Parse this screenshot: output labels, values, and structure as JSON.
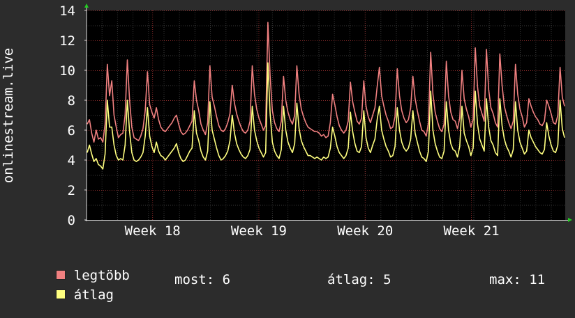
{
  "chart_data": {
    "type": "line",
    "title": "",
    "xlabel": "",
    "ylabel": "onlinestream.live",
    "ylim": [
      0,
      14
    ],
    "yticks": [
      0,
      2,
      4,
      6,
      8,
      10,
      12,
      14
    ],
    "x_tick_labels": [
      "Week 18",
      "Week 19",
      "Week 20",
      "Week 21"
    ],
    "x_tick_fractions": [
      0.138,
      0.36,
      0.582,
      0.804
    ],
    "grid": true,
    "legend": "bottom-left",
    "series": [
      {
        "name": "legtöbb",
        "color": "#f08080",
        "values": [
          6.4,
          6.7,
          5.8,
          5.2,
          6.0,
          5.4,
          5.5,
          5.2,
          6.4,
          10.4,
          8.3,
          9.3,
          7.0,
          6.2,
          5.5,
          5.7,
          5.8,
          7.0,
          10.7,
          8.0,
          6.2,
          5.5,
          5.4,
          5.3,
          5.6,
          6.1,
          7.3,
          9.9,
          7.7,
          7.2,
          6.8,
          7.5,
          6.7,
          6.2,
          6.0,
          5.9,
          6.1,
          6.3,
          6.5,
          6.8,
          7.0,
          6.4,
          5.9,
          5.7,
          5.8,
          6.0,
          6.3,
          6.6,
          9.3,
          8.0,
          7.3,
          6.4,
          6.0,
          5.7,
          6.5,
          10.3,
          8.2,
          7.6,
          6.9,
          6.3,
          6.0,
          5.9,
          6.1,
          6.5,
          7.1,
          9.0,
          7.8,
          7.1,
          6.6,
          6.2,
          5.9,
          5.8,
          6.0,
          6.6,
          10.3,
          8.4,
          7.4,
          6.8,
          6.4,
          6.0,
          6.3,
          13.2,
          9.6,
          7.3,
          6.5,
          6.1,
          5.9,
          6.6,
          9.6,
          8.0,
          7.2,
          6.7,
          6.4,
          7.0,
          10.3,
          8.4,
          7.4,
          6.9,
          6.5,
          6.2,
          6.1,
          6.0,
          5.9,
          5.9,
          5.8,
          5.6,
          5.7,
          5.5,
          5.6,
          6.5,
          8.4,
          7.7,
          6.9,
          6.3,
          6.0,
          5.8,
          6.0,
          6.6,
          9.2,
          7.9,
          7.2,
          6.6,
          6.4,
          6.8,
          9.3,
          7.6,
          6.9,
          6.5,
          7.0,
          7.5,
          8.9,
          10.2,
          8.3,
          7.6,
          7.0,
          6.6,
          6.1,
          6.2,
          6.9,
          10.1,
          8.3,
          7.3,
          6.8,
          6.5,
          6.7,
          7.5,
          9.6,
          8.1,
          7.3,
          6.6,
          6.0,
          5.9,
          5.6,
          6.5,
          11.2,
          8.4,
          7.2,
          6.6,
          6.1,
          5.9,
          6.4,
          10.6,
          8.3,
          7.2,
          6.7,
          6.6,
          6.1,
          6.8,
          10.0,
          8.1,
          7.4,
          6.9,
          6.2,
          6.7,
          11.5,
          8.9,
          7.6,
          7.1,
          6.6,
          11.4,
          8.7,
          7.5,
          7.1,
          6.5,
          6.2,
          11.1,
          9.0,
          7.6,
          7.0,
          6.5,
          6.1,
          6.6,
          10.4,
          8.4,
          7.4,
          6.9,
          6.2,
          6.5,
          8.1,
          7.6,
          7.2,
          6.9,
          6.7,
          6.4,
          6.3,
          6.6,
          8.0,
          7.6,
          7.1,
          6.5,
          6.4,
          7.0,
          10.2,
          8.2,
          7.6
        ]
      },
      {
        "name": "átlag",
        "color": "#ffff80",
        "values": [
          4.5,
          5.0,
          4.4,
          3.9,
          4.1,
          3.7,
          3.6,
          3.4,
          4.4,
          8.0,
          6.2,
          6.2,
          5.0,
          4.3,
          4.0,
          4.1,
          4.0,
          5.0,
          8.0,
          5.9,
          4.5,
          4.0,
          3.9,
          4.0,
          4.2,
          4.5,
          5.6,
          7.5,
          5.6,
          4.9,
          4.5,
          5.2,
          4.6,
          4.3,
          4.2,
          4.0,
          4.2,
          4.4,
          4.6,
          4.8,
          5.1,
          4.5,
          4.1,
          3.9,
          4.0,
          4.3,
          4.6,
          4.8,
          7.3,
          5.8,
          5.3,
          4.6,
          4.2,
          4.0,
          4.6,
          7.9,
          6.0,
          5.4,
          4.8,
          4.3,
          4.0,
          4.1,
          4.3,
          4.6,
          5.3,
          7.0,
          5.8,
          5.1,
          4.7,
          4.4,
          4.2,
          4.1,
          4.3,
          4.7,
          7.6,
          6.0,
          5.3,
          4.8,
          4.5,
          4.2,
          4.5,
          10.5,
          7.1,
          5.2,
          4.6,
          4.3,
          4.1,
          4.7,
          7.6,
          6.0,
          5.2,
          4.8,
          4.5,
          5.1,
          7.8,
          6.1,
          5.3,
          4.9,
          4.6,
          4.3,
          4.3,
          4.2,
          4.1,
          4.2,
          4.1,
          4.0,
          4.2,
          4.1,
          4.2,
          4.8,
          6.2,
          5.6,
          4.9,
          4.5,
          4.3,
          4.1,
          4.3,
          4.8,
          7.2,
          5.9,
          5.1,
          4.6,
          4.5,
          4.9,
          7.3,
          5.5,
          4.8,
          4.5,
          5.0,
          5.4,
          6.7,
          7.6,
          6.0,
          5.4,
          4.9,
          4.6,
          4.2,
          4.3,
          4.9,
          7.5,
          6.0,
          5.2,
          4.8,
          4.6,
          4.8,
          5.4,
          7.3,
          5.8,
          5.2,
          4.6,
          4.2,
          4.1,
          3.9,
          4.6,
          8.6,
          6.0,
          5.1,
          4.6,
          4.2,
          4.1,
          4.6,
          7.9,
          6.0,
          5.1,
          4.7,
          4.6,
          4.2,
          4.9,
          7.6,
          5.8,
          5.3,
          4.9,
          4.3,
          4.8,
          8.6,
          6.4,
          5.4,
          5.0,
          4.6,
          8.1,
          6.2,
          5.3,
          5.0,
          4.5,
          4.3,
          8.1,
          6.3,
          5.4,
          4.9,
          4.6,
          4.2,
          4.7,
          7.9,
          6.0,
          5.2,
          4.8,
          4.4,
          4.6,
          6.0,
          5.5,
          5.2,
          4.9,
          4.7,
          4.5,
          4.4,
          4.7,
          6.5,
          5.6,
          5.0,
          4.6,
          4.5,
          5.0,
          8.0,
          6.1,
          5.5
        ]
      }
    ]
  },
  "legend_items": [
    {
      "label": "legtöbb",
      "color": "#f08080"
    },
    {
      "label": "átlag",
      "color": "#ffff80"
    }
  ],
  "stats": {
    "now": "most: 6",
    "avg": "átlag: 5",
    "max": "max: 11"
  },
  "colors": {
    "background": "#2c2c2c",
    "plot_background": "#000000",
    "grid_minor": "#3a3a3a",
    "grid_major": "#8a2a2a",
    "axis": "#e0e0e0",
    "arrow": "#22cc22"
  }
}
